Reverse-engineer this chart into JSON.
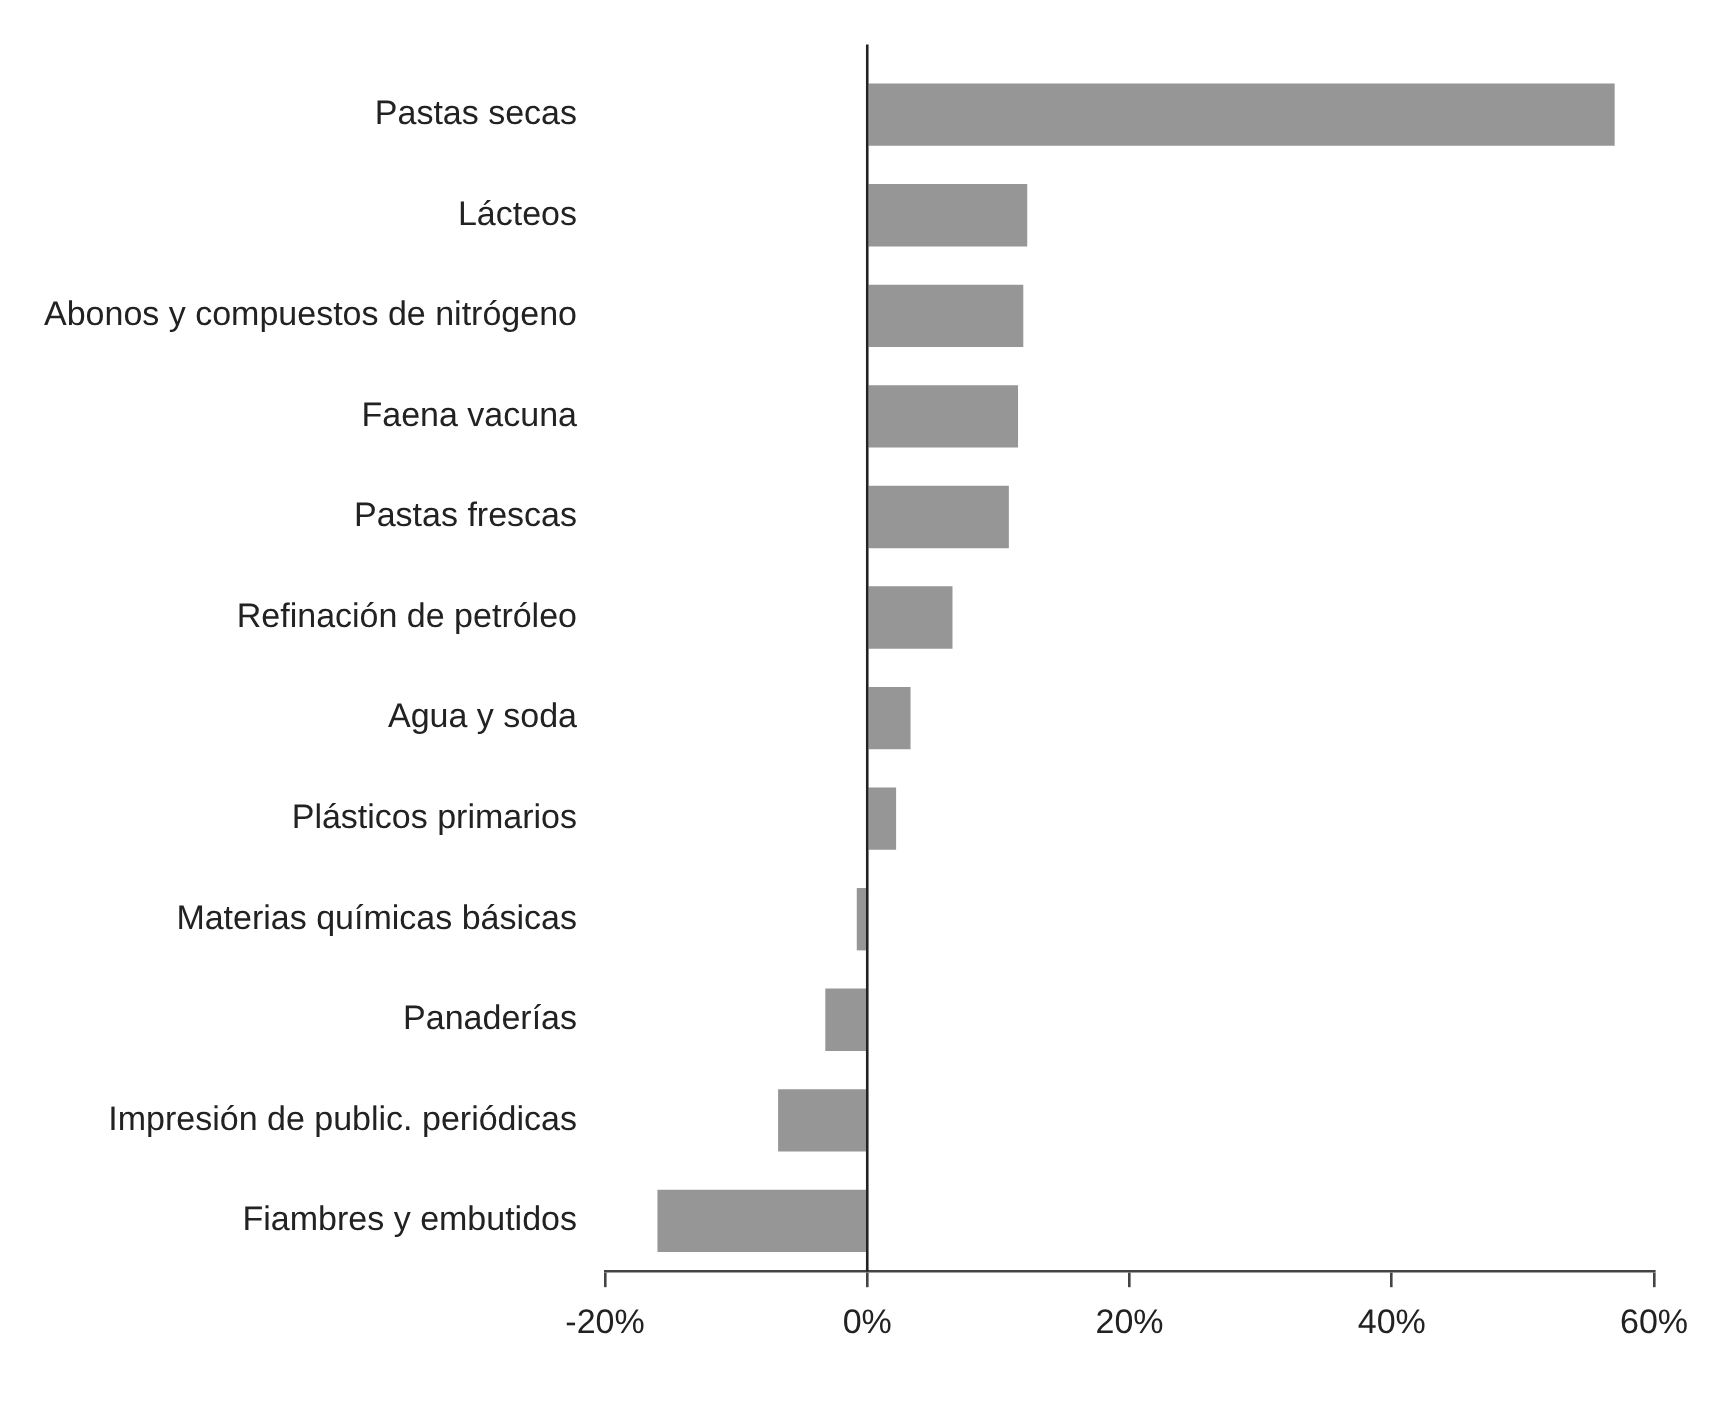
{
  "chart_data": {
    "type": "bar",
    "orientation": "horizontal",
    "categories": [
      "Pastas secas",
      "Lácteos",
      "Abonos y compuestos de nitrógeno",
      "Faena vacuna",
      "Pastas frescas",
      "Refinación de petróleo",
      "Agua y soda",
      "Plásticos primarios",
      "Materias químicas básicas",
      "Panaderías",
      "Impresión de public. periódicas",
      "Fiambres y embutidos"
    ],
    "values": [
      57,
      12.2,
      11.9,
      11.5,
      10.8,
      6.5,
      3.3,
      2.2,
      -0.8,
      -3.2,
      -6.8,
      -16
    ],
    "color": "#969696",
    "xlim": [
      -20,
      60
    ],
    "xticks": [
      {
        "value": -20,
        "label": "-20%"
      },
      {
        "value": 0,
        "label": "0%"
      },
      {
        "value": 20,
        "label": "20%"
      },
      {
        "value": 40,
        "label": "40%"
      },
      {
        "value": 60,
        "label": "60%"
      }
    ],
    "ref_lines": [
      {
        "axis": "x",
        "value": 0,
        "color": "#222222"
      }
    ],
    "grid": false,
    "legend": false
  }
}
